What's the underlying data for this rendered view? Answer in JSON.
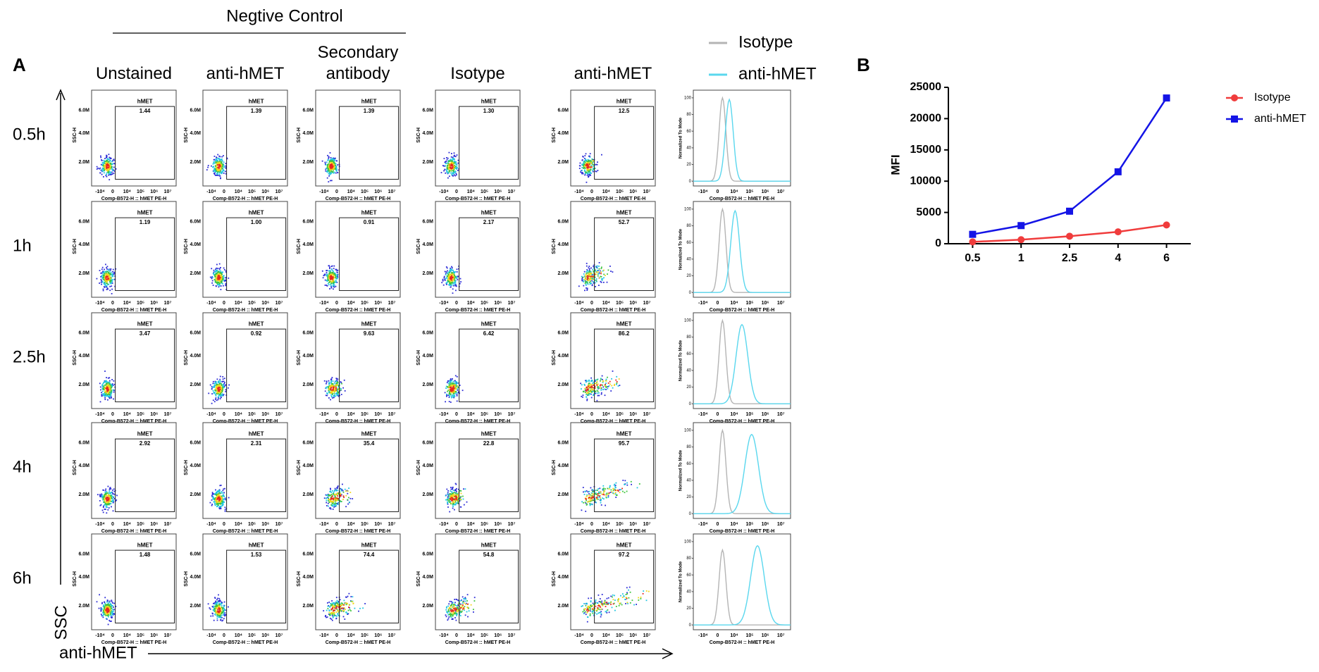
{
  "panel_a": {
    "label": "A",
    "group_label": "Negtive Control",
    "columns": [
      "Unstained",
      "anti-hMET",
      "Secondary antibody",
      "Isotype",
      "anti-hMET"
    ],
    "legend": [
      {
        "name": "Isotype",
        "color": "#b4b4b4"
      },
      {
        "name": "anti-hMET",
        "color": "#5ad7ee"
      }
    ],
    "rows": [
      "0.5h",
      "1h",
      "2.5h",
      "4h",
      "6h"
    ],
    "gate_name": "hMET",
    "gate_percent": [
      [
        "1.44",
        "1.39",
        "1.39",
        "1.30",
        "12.5"
      ],
      [
        "1.19",
        "1.00",
        "0.91",
        "2.17",
        "52.7"
      ],
      [
        "3.47",
        "0.92",
        "9.63",
        "6.42",
        "86.2"
      ],
      [
        "2.92",
        "2.31",
        "35.4",
        "22.8",
        "95.7"
      ],
      [
        "1.48",
        "1.53",
        "74.4",
        "54.8",
        "97.2"
      ]
    ],
    "flow_y_label": "SSC-H",
    "flow_y_ticks": [
      "6.0M",
      "4.0M",
      "2.0M"
    ],
    "flow_x_label": "Comp-B572-H :: hMET PE-H",
    "x_ticks": [
      "-10⁴",
      "0",
      "10⁴",
      "10⁵",
      "10⁶",
      "10⁷"
    ],
    "hist_y_label": "Normalized To Mode",
    "hist_y_ticks": [
      0,
      20,
      40,
      60,
      80,
      100
    ],
    "y_axis_label": "SSC",
    "x_axis_label": "anti-hMET"
  },
  "chart_data": {
    "type": "line",
    "panel_label": "B",
    "y_label": "MFI",
    "categories": [
      "0.5",
      "1",
      "2.5",
      "4",
      "6"
    ],
    "series": [
      {
        "name": "Isotype",
        "color": "#f03c3c",
        "marker": "circle",
        "values": [
          300,
          650,
          1200,
          1900,
          3000
        ]
      },
      {
        "name": "anti-hMET",
        "color": "#1414e6",
        "marker": "square",
        "values": [
          1500,
          2900,
          5200,
          11500,
          23300
        ]
      }
    ],
    "ylim": [
      0,
      25000
    ],
    "yticks": [
      0,
      5000,
      10000,
      15000,
      20000,
      25000
    ],
    "legend": "upper right"
  }
}
